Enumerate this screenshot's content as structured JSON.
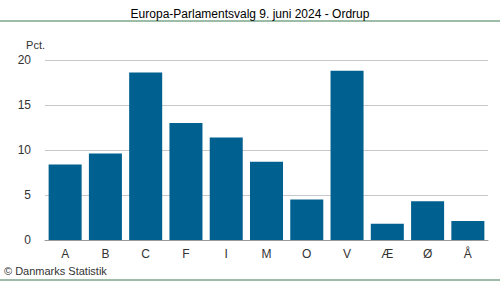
{
  "chart_data": {
    "type": "bar",
    "title": "Europa-Parlamentsvalg 9. juni 2024 - Ordrup",
    "y_label": "Pct.",
    "source": "© Danmarks Statistik",
    "categories": [
      "A",
      "B",
      "C",
      "F",
      "I",
      "M",
      "O",
      "V",
      "Æ",
      "Ø",
      "Å"
    ],
    "values": [
      8.4,
      9.6,
      18.6,
      13.0,
      11.4,
      8.7,
      4.5,
      18.8,
      1.8,
      4.3,
      2.1
    ],
    "color": "#00608f",
    "ylim": [
      0,
      20
    ],
    "yticks": [
      0,
      5,
      10,
      15,
      20
    ],
    "grid": true
  }
}
